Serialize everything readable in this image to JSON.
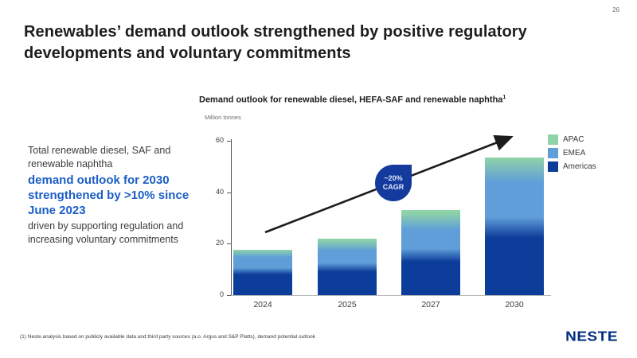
{
  "page": {
    "number": "26"
  },
  "title": "Renewables’ demand outlook strengthened by positive regulatory developments and voluntary commitments",
  "left_text": {
    "intro": "Total renewable diesel, SAF and renewable naphtha",
    "highlight": "demand outlook for 2030 strengthened by >10% since June 2023",
    "outro": "driven by supporting regulation and increasing voluntary commitments"
  },
  "chart_data": {
    "type": "bar",
    "stacked": true,
    "title": "Demand outlook for renewable diesel, HEFA-SAF and renewable naphtha",
    "title_superscript": "1",
    "ylabel": "Million tonnes",
    "categories": [
      "2024",
      "2025",
      "2027",
      "2030"
    ],
    "series": [
      {
        "name": "Americas",
        "color": "#0d3d9b",
        "values": [
          9,
          10.5,
          15,
          25.5
        ]
      },
      {
        "name": "EMEA",
        "color": "#5f9ed8",
        "values": [
          7,
          8.5,
          13,
          22.5
        ]
      },
      {
        "name": "APAC",
        "color": "#8fd3a8",
        "values": [
          1.5,
          3,
          5,
          5.5
        ]
      }
    ],
    "totals": [
      17.5,
      22,
      33,
      53.5
    ],
    "ylim": [
      0,
      60
    ],
    "yticks": [
      0,
      20,
      40,
      60
    ],
    "grid": false,
    "legend_position": "right",
    "bar_style": "soft vertical gradient between stacked segments",
    "annotation": {
      "line1": "~20%",
      "line2": "CAGR"
    },
    "trend_arrow": "rising straight arrow from above 2024 bar to upper right above 2030 bar"
  },
  "legend": {
    "items": [
      {
        "label": "APAC",
        "color": "#8fd3a8"
      },
      {
        "label": "EMEA",
        "color": "#5f9ed8"
      },
      {
        "label": "Americas",
        "color": "#0d3d9b"
      }
    ]
  },
  "footnote": "(1) Neste analysis based on publicly available data and third party sources (a.o. Argus and S&P Platts), demand potential outlook",
  "logo_text": "NESTE",
  "colors": {
    "highlight_text_blue": "#1b5ec6",
    "drop_blue": "#143a9d",
    "logo_navy": "#002c80",
    "title_text": "#1d1d1b",
    "arrow": "#1c1c1c"
  }
}
